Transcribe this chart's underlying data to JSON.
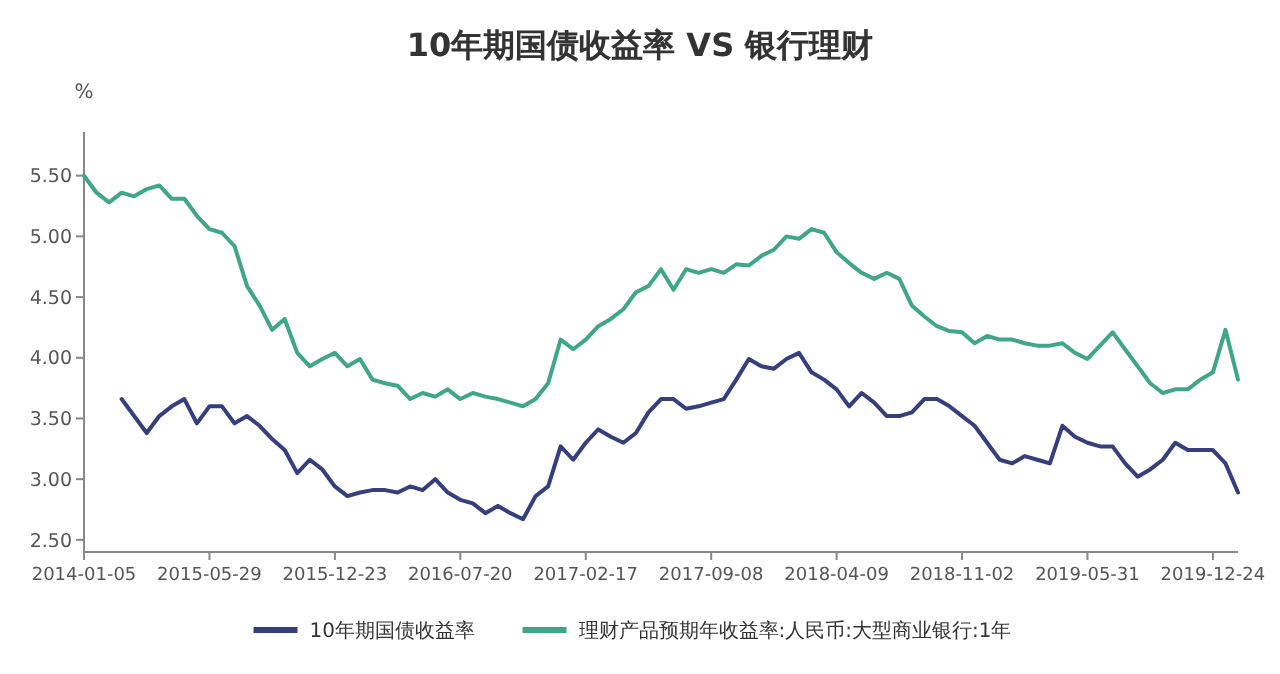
{
  "chart_data": {
    "type": "line",
    "title": "10年期国债收益率 VS 银行理财",
    "ylabel": "%",
    "categories": [
      "2014-01-05",
      null,
      null,
      null,
      null,
      null,
      null,
      null,
      null,
      null,
      "2015-05-29",
      null,
      null,
      null,
      null,
      null,
      null,
      null,
      null,
      null,
      "2015-12-23",
      null,
      null,
      null,
      null,
      null,
      null,
      null,
      null,
      null,
      "2016-07-20",
      null,
      null,
      null,
      null,
      null,
      null,
      null,
      null,
      null,
      "2017-02-17",
      null,
      null,
      null,
      null,
      null,
      null,
      null,
      null,
      null,
      "2017-09-08",
      null,
      null,
      null,
      null,
      null,
      null,
      null,
      null,
      null,
      "2018-04-09",
      null,
      null,
      null,
      null,
      null,
      null,
      null,
      null,
      null,
      "2018-11-02",
      null,
      null,
      null,
      null,
      null,
      null,
      null,
      null,
      null,
      "2019-05-31",
      null,
      null,
      null,
      null,
      null,
      null,
      null,
      null,
      null,
      "2019-12-24",
      null,
      null
    ],
    "series": [
      {
        "name": "10年期国债收益率",
        "color": "#363f7e",
        "values": [
          null,
          null,
          null,
          3.66,
          3.52,
          3.38,
          3.52,
          3.6,
          3.66,
          3.46,
          3.6,
          3.6,
          3.46,
          3.52,
          3.44,
          3.33,
          3.24,
          3.05,
          3.16,
          3.08,
          2.94,
          2.86,
          2.89,
          2.91,
          2.91,
          2.89,
          2.94,
          2.91,
          3.0,
          2.89,
          2.83,
          2.8,
          2.72,
          2.78,
          2.72,
          2.67,
          2.86,
          2.94,
          3.27,
          3.16,
          3.3,
          3.41,
          3.35,
          3.3,
          3.38,
          3.55,
          3.66,
          3.66,
          3.58,
          3.6,
          3.63,
          3.66,
          3.82,
          3.99,
          3.93,
          3.91,
          3.99,
          4.04,
          3.88,
          3.82,
          3.74,
          3.6,
          3.71,
          3.63,
          3.52,
          3.52,
          3.55,
          3.66,
          3.66,
          3.6,
          3.52,
          3.44,
          3.3,
          3.16,
          3.13,
          3.19,
          3.16,
          3.13,
          3.44,
          3.35,
          3.3,
          3.27,
          3.27,
          3.13,
          3.02,
          3.08,
          3.16,
          3.3,
          3.24,
          3.24,
          3.24,
          3.13,
          2.89
        ]
      },
      {
        "name": "理财产品预期年收益率:人民币:大型商业银行:1年",
        "color": "#3fa68a",
        "values": [
          5.5,
          5.36,
          5.28,
          5.36,
          5.33,
          5.39,
          5.42,
          5.31,
          5.31,
          5.17,
          5.06,
          5.03,
          4.92,
          4.59,
          4.43,
          4.23,
          4.32,
          4.04,
          3.93,
          3.99,
          4.04,
          3.93,
          3.99,
          3.82,
          3.79,
          3.77,
          3.66,
          3.71,
          3.68,
          3.74,
          3.66,
          3.71,
          3.68,
          3.66,
          3.63,
          3.6,
          3.66,
          3.79,
          4.15,
          4.07,
          4.15,
          4.26,
          4.32,
          4.4,
          4.54,
          4.59,
          4.73,
          4.56,
          4.73,
          4.7,
          4.73,
          4.7,
          4.77,
          4.76,
          4.84,
          4.89,
          5.0,
          4.98,
          5.06,
          5.03,
          4.87,
          4.78,
          4.7,
          4.65,
          4.7,
          4.65,
          4.43,
          4.34,
          4.26,
          4.22,
          4.21,
          4.12,
          4.18,
          4.15,
          4.15,
          4.12,
          4.1,
          4.1,
          4.12,
          4.04,
          3.99,
          4.1,
          4.21,
          4.07,
          3.93,
          3.79,
          3.71,
          3.74,
          3.74,
          3.82,
          3.88,
          4.23,
          3.82
        ]
      }
    ],
    "ylim": [
      2.4,
      5.86
    ],
    "yticks": [
      {
        "value": 2.5,
        "label": "2.50"
      },
      {
        "value": 3,
        "label": "3.00"
      },
      {
        "value": 3.5,
        "label": "3.50"
      },
      {
        "value": 4,
        "label": "4.00"
      },
      {
        "value": 4.5,
        "label": "4.50"
      },
      {
        "value": 5,
        "label": "5.00"
      },
      {
        "value": 5.5,
        "label": "5.50"
      }
    ],
    "grid": false,
    "legend": "bottom",
    "marker": "none",
    "line_style": "solid"
  }
}
